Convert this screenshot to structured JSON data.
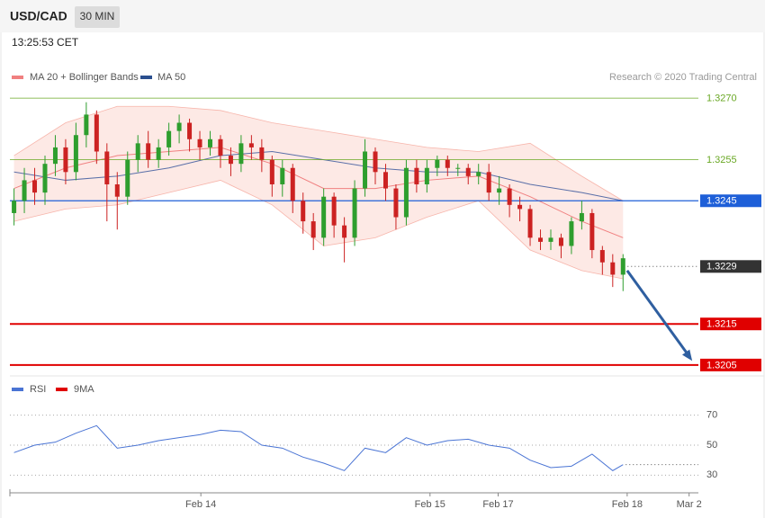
{
  "header": {
    "symbol": "USD/CAD",
    "interval": "30 MIN",
    "time": "13:25:53 CET"
  },
  "chart_data": {
    "type": "candlestick",
    "legend": [
      "MA 20 + Bollinger Bands",
      "MA 50"
    ],
    "credit": "Research © 2020 Trading Central",
    "xlim": [
      -0.4,
      66.3
    ],
    "xticks": [
      {
        "value": 18.1,
        "label": "Feb 14"
      },
      {
        "value": 40.3,
        "label": "Feb 15"
      },
      {
        "value": 46.9,
        "label": "Feb 17"
      },
      {
        "value": 59.4,
        "label": "Feb 18"
      },
      {
        "value": 65.4,
        "label": "Mar 2"
      }
    ],
    "ylim": [
      1.3203,
      1.3272
    ],
    "up_color": "#2e9e2e",
    "down_color": "#cc2222",
    "open": [
      1.3242,
      1.3245,
      1.325,
      1.3247,
      1.3254,
      1.3258,
      1.3252,
      1.3261,
      1.3266,
      1.3257,
      1.3249,
      1.3246,
      1.3255,
      1.3259,
      1.3255,
      1.3258,
      1.3262,
      1.3264,
      1.326,
      1.3258,
      1.326,
      1.3256,
      1.3254,
      1.3259,
      1.3258,
      1.3255,
      1.3249,
      1.3253,
      1.3245,
      1.324,
      1.3236,
      1.3246,
      1.3239,
      1.3236,
      1.3248,
      1.3257,
      1.3252,
      1.3248,
      1.3241,
      1.3253,
      1.3249,
      1.3253,
      1.3255,
      1.3253,
      1.3253,
      1.3251,
      1.3252,
      1.3247,
      1.3248,
      1.3244,
      1.3243,
      1.3236,
      1.3235,
      1.3236,
      1.3234,
      1.324,
      1.3242,
      1.3233,
      1.323,
      1.3227
    ],
    "high": [
      1.3248,
      1.3253,
      1.3253,
      1.3256,
      1.3261,
      1.326,
      1.3264,
      1.3269,
      1.3267,
      1.3259,
      1.3252,
      1.3257,
      1.3261,
      1.3262,
      1.326,
      1.3264,
      1.3266,
      1.3265,
      1.3262,
      1.3262,
      1.3261,
      1.3258,
      1.3261,
      1.3261,
      1.326,
      1.3256,
      1.3255,
      1.3254,
      1.3247,
      1.3242,
      1.3248,
      1.3247,
      1.3241,
      1.325,
      1.326,
      1.3258,
      1.3254,
      1.3249,
      1.3255,
      1.3255,
      1.3255,
      1.3256,
      1.3256,
      1.3254,
      1.3254,
      1.3254,
      1.3254,
      1.3251,
      1.3249,
      1.3246,
      1.3244,
      1.3238,
      1.3238,
      1.3237,
      1.3241,
      1.3245,
      1.3243,
      1.3234,
      1.3232,
      1.3232
    ],
    "low": [
      1.3239,
      1.3242,
      1.3244,
      1.3244,
      1.3251,
      1.3249,
      1.325,
      1.3258,
      1.3254,
      1.324,
      1.3238,
      1.3244,
      1.3252,
      1.3253,
      1.3253,
      1.3256,
      1.3259,
      1.3257,
      1.3255,
      1.3256,
      1.3253,
      1.3251,
      1.3252,
      1.3255,
      1.3252,
      1.3246,
      1.3246,
      1.3242,
      1.3237,
      1.3233,
      1.3234,
      1.3236,
      1.323,
      1.3234,
      1.3246,
      1.3249,
      1.3245,
      1.3238,
      1.3239,
      1.3247,
      1.3247,
      1.3251,
      1.3251,
      1.3251,
      1.3249,
      1.3249,
      1.3245,
      1.3244,
      1.3241,
      1.324,
      1.3234,
      1.3233,
      1.3233,
      1.3231,
      1.3232,
      1.3238,
      1.3231,
      1.3227,
      1.3224,
      1.3223
    ],
    "close": [
      1.3245,
      1.325,
      1.3247,
      1.3254,
      1.3258,
      1.3252,
      1.3261,
      1.3266,
      1.3257,
      1.3249,
      1.3246,
      1.3255,
      1.3259,
      1.3255,
      1.3258,
      1.3262,
      1.3264,
      1.326,
      1.3258,
      1.326,
      1.3256,
      1.3254,
      1.3259,
      1.3258,
      1.3255,
      1.3249,
      1.3253,
      1.3245,
      1.324,
      1.3236,
      1.3246,
      1.3239,
      1.3236,
      1.3248,
      1.3257,
      1.3252,
      1.3248,
      1.3241,
      1.3253,
      1.3249,
      1.3253,
      1.3255,
      1.3253,
      1.3253,
      1.3251,
      1.3252,
      1.3247,
      1.3248,
      1.3244,
      1.3243,
      1.3236,
      1.3235,
      1.3236,
      1.3234,
      1.324,
      1.3242,
      1.3233,
      1.323,
      1.3227,
      1.3231
    ],
    "bands": {
      "x": [
        0,
        5,
        10,
        15,
        20,
        25,
        30,
        35,
        40,
        45,
        50,
        55,
        59
      ],
      "upper": [
        1.3256,
        1.3264,
        1.3268,
        1.3268,
        1.3267,
        1.3264,
        1.3262,
        1.326,
        1.3258,
        1.3257,
        1.3259,
        1.3251,
        1.3245
      ],
      "lower": [
        1.324,
        1.3243,
        1.3244,
        1.3247,
        1.325,
        1.3244,
        1.3234,
        1.3236,
        1.3241,
        1.3245,
        1.3233,
        1.3228,
        1.3226
      ],
      "mid": [
        1.3248,
        1.3253,
        1.3256,
        1.3257,
        1.3258,
        1.3254,
        1.3248,
        1.3248,
        1.325,
        1.3251,
        1.3246,
        1.324,
        1.3236
      ],
      "ma50": [
        1.3252,
        1.325,
        1.3251,
        1.3253,
        1.3256,
        1.3257,
        1.3255,
        1.3253,
        1.3252,
        1.3252,
        1.3249,
        1.3247,
        1.3245
      ]
    },
    "levels": [
      {
        "value": 1.327,
        "label": "1.3270",
        "color": "#6aa825",
        "boxed": false,
        "width": 0.7
      },
      {
        "value": 1.3255,
        "label": "1.3255",
        "color": "#6aa825",
        "boxed": false,
        "width": 0.7
      },
      {
        "value": 1.3245,
        "label": "1.3245",
        "color": "#1e5fd8",
        "boxed": true,
        "width": 1.2
      },
      {
        "value": 1.3229,
        "label": "1.3229",
        "color": "#333333",
        "boxed": true,
        "width": 0
      },
      {
        "value": 1.3215,
        "label": "1.3215",
        "color": "#e00000",
        "boxed": true,
        "width": 2
      },
      {
        "value": 1.3205,
        "label": "1.3205",
        "color": "#e00000",
        "boxed": true,
        "width": 2
      }
    ],
    "forecast": {
      "x": [
        59.4,
        65.7
      ],
      "y": [
        1.3228,
        1.3206
      ]
    },
    "rsi": {
      "legend": [
        "RSI",
        "9MA"
      ],
      "ylim": [
        20,
        80
      ],
      "yticks": [
        70,
        50,
        30
      ],
      "x": [
        0,
        2,
        4,
        6,
        8,
        10,
        12,
        14,
        16,
        18,
        20,
        22,
        24,
        26,
        28,
        30,
        32,
        34,
        36,
        38,
        40,
        42,
        44,
        46,
        48,
        50,
        52,
        54,
        56,
        58,
        59
      ],
      "values": [
        45,
        50,
        52,
        58,
        63,
        48,
        50,
        53,
        55,
        57,
        60,
        59,
        50,
        48,
        42,
        38,
        33,
        48,
        45,
        55,
        50,
        53,
        54,
        50,
        48,
        40,
        35,
        36,
        44,
        33,
        37
      ]
    }
  }
}
